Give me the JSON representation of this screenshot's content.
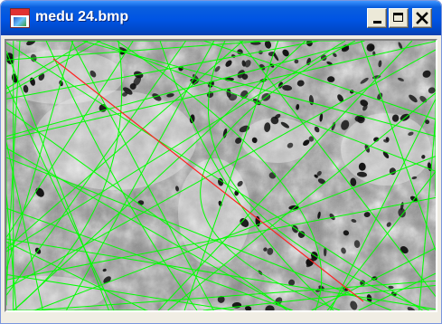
{
  "window": {
    "title": "medu 24.bmp",
    "icons": {
      "app": "bitmap-document-icon",
      "minimize": "minimize-icon",
      "maximize": "maximize-icon",
      "close": "close-icon"
    }
  },
  "image": {
    "description_kind": "grayscale histology micrograph with line overlay",
    "overlay_colors": {
      "lines": "#00ff00",
      "highlight": "#ff2020"
    }
  },
  "colors": {
    "titlebar": "#0054e3",
    "window_frame": "#f0ede4",
    "button_face": "#ece9d8"
  }
}
